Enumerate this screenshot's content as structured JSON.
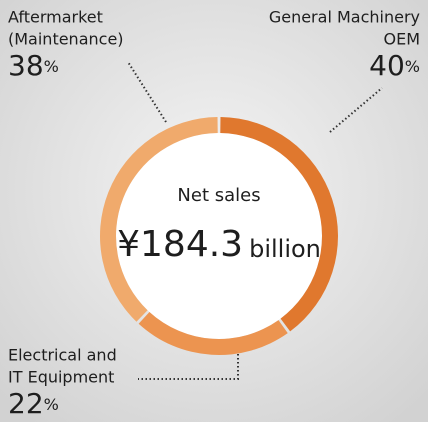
{
  "chart_data": {
    "type": "donut",
    "center_title": "Net sales",
    "center_value": "¥184.3",
    "center_unit": "billion",
    "categories": [
      [
        "General Machinery",
        "OEM"
      ],
      [
        "Electrical and",
        "IT Equipment"
      ],
      [
        "Aftermarket",
        "(Maintenance)"
      ]
    ],
    "values": [
      40,
      22,
      38
    ],
    "value_labels": [
      "40%",
      "22%",
      "38%"
    ],
    "colors": [
      "#e0782e",
      "#ec9450",
      "#f0aa6c"
    ]
  }
}
